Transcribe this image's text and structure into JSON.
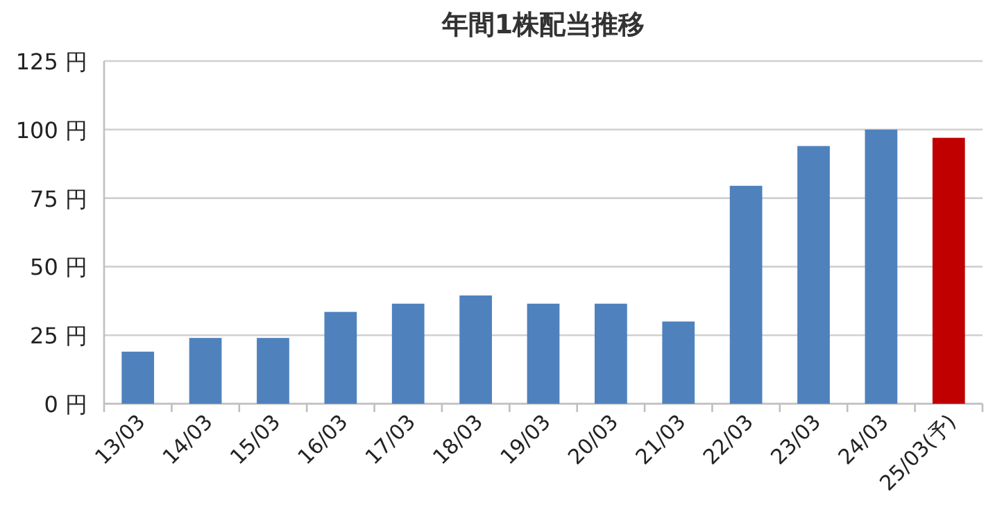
{
  "chart_data": {
    "type": "bar",
    "title": "年間1株配当推移",
    "categories": [
      "13/03",
      "14/03",
      "15/03",
      "16/03",
      "17/03",
      "18/03",
      "19/03",
      "20/03",
      "21/03",
      "22/03",
      "23/03",
      "24/03",
      "25/03(予)"
    ],
    "values": [
      19,
      24,
      24,
      33.5,
      36.5,
      39.5,
      36.5,
      36.5,
      30,
      79.5,
      94,
      100,
      97
    ],
    "colors": [
      "#4f81bd",
      "#4f81bd",
      "#4f81bd",
      "#4f81bd",
      "#4f81bd",
      "#4f81bd",
      "#4f81bd",
      "#4f81bd",
      "#4f81bd",
      "#4f81bd",
      "#4f81bd",
      "#4f81bd",
      "#c00000"
    ],
    "ylim": [
      0,
      125
    ],
    "yticks": [
      {
        "value": 0,
        "label": "0 円"
      },
      {
        "value": 25,
        "label": "25 円"
      },
      {
        "value": 50,
        "label": "50 円"
      },
      {
        "value": 75,
        "label": "75 円"
      },
      {
        "value": 100,
        "label": "100 円"
      },
      {
        "value": 125,
        "label": "125 円"
      }
    ],
    "grid": "y"
  }
}
